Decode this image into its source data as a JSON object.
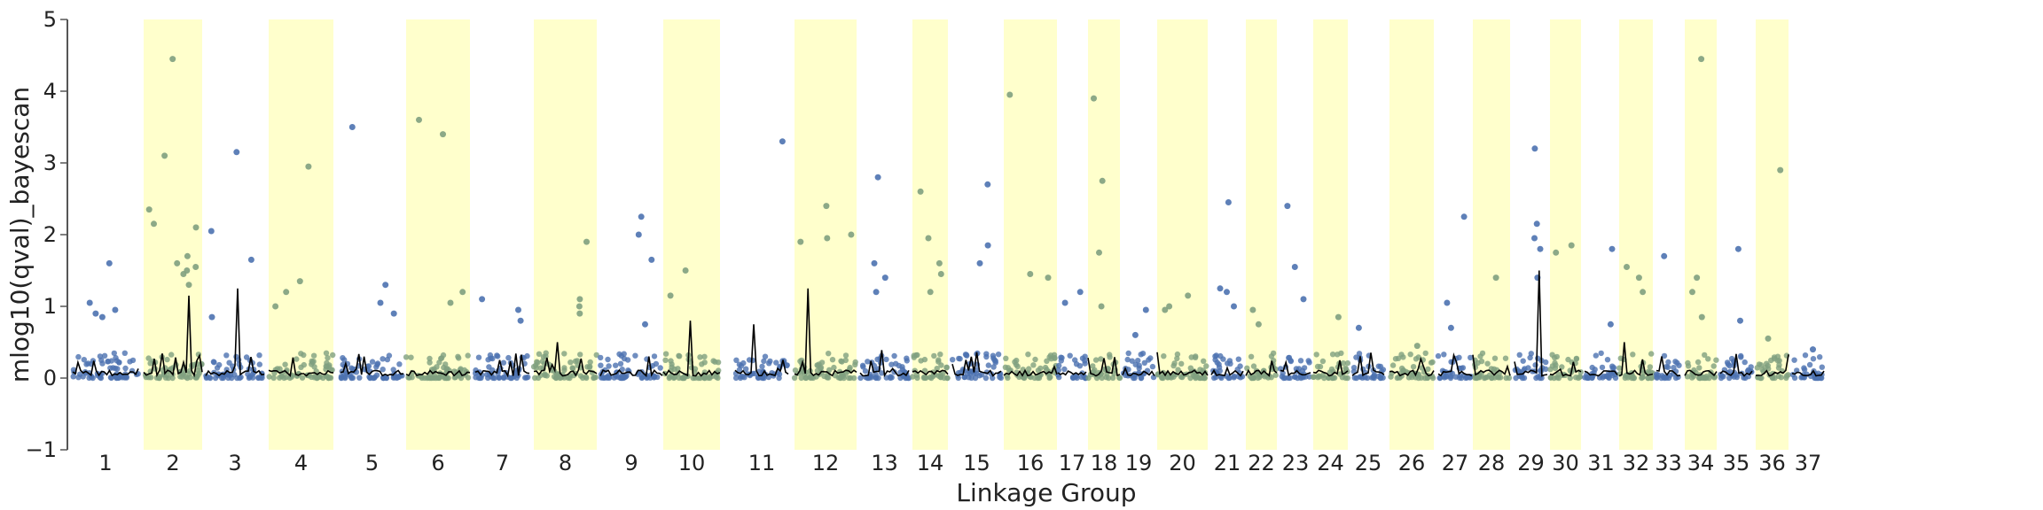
{
  "chart_data": {
    "type": "scatter",
    "title": "",
    "xlabel": "Linkage Group",
    "ylabel": "mlog10(qval)_bayescan",
    "ylim": [
      -1,
      5
    ],
    "yticks": [
      -1,
      0,
      1,
      2,
      3,
      4,
      5
    ],
    "categories": [
      "1",
      "2",
      "3",
      "4",
      "5",
      "6",
      "7",
      "8",
      "9",
      "10",
      "11",
      "12",
      "13",
      "14",
      "15",
      "16",
      "17",
      "18",
      "19",
      "20",
      "21",
      "22",
      "23",
      "24",
      "25",
      "26",
      "27",
      "28",
      "29",
      "30",
      "31",
      "32",
      "33",
      "34",
      "35",
      "36",
      "37"
    ],
    "highlighted_groups": [
      "2",
      "4",
      "6",
      "8",
      "10",
      "12",
      "14",
      "16",
      "18",
      "20",
      "22",
      "24",
      "26",
      "28",
      "30",
      "32",
      "34",
      "36"
    ],
    "band_color": "#ffffcc",
    "point_color": "#4c72b0",
    "point_color_in_band": "#7fa07f",
    "line_color": "#000000",
    "grid": false,
    "legend": "none",
    "outliers": [
      {
        "group": "1",
        "value": 1.6
      },
      {
        "group": "1",
        "value": 1.05
      },
      {
        "group": "1",
        "value": 0.95
      },
      {
        "group": "1",
        "value": 0.85
      },
      {
        "group": "1",
        "value": 0.9
      },
      {
        "group": "2",
        "value": 4.45
      },
      {
        "group": "2",
        "value": 3.1
      },
      {
        "group": "2",
        "value": 2.35
      },
      {
        "group": "2",
        "value": 2.15
      },
      {
        "group": "2",
        "value": 2.1
      },
      {
        "group": "2",
        "value": 1.7
      },
      {
        "group": "2",
        "value": 1.6
      },
      {
        "group": "2",
        "value": 1.55
      },
      {
        "group": "2",
        "value": 1.5
      },
      {
        "group": "2",
        "value": 1.45
      },
      {
        "group": "2",
        "value": 1.3
      },
      {
        "group": "3",
        "value": 3.15
      },
      {
        "group": "3",
        "value": 2.05
      },
      {
        "group": "3",
        "value": 1.65
      },
      {
        "group": "3",
        "value": 0.85
      },
      {
        "group": "4",
        "value": 2.95
      },
      {
        "group": "4",
        "value": 1.35
      },
      {
        "group": "4",
        "value": 1.2
      },
      {
        "group": "4",
        "value": 1.0
      },
      {
        "group": "5",
        "value": 3.5
      },
      {
        "group": "5",
        "value": 1.3
      },
      {
        "group": "5",
        "value": 1.05
      },
      {
        "group": "5",
        "value": 0.9
      },
      {
        "group": "6",
        "value": 3.6
      },
      {
        "group": "6",
        "value": 3.4
      },
      {
        "group": "6",
        "value": 1.2
      },
      {
        "group": "6",
        "value": 1.05
      },
      {
        "group": "7",
        "value": 1.1
      },
      {
        "group": "7",
        "value": 0.95
      },
      {
        "group": "7",
        "value": 0.8
      },
      {
        "group": "8",
        "value": 1.9
      },
      {
        "group": "8",
        "value": 1.1
      },
      {
        "group": "8",
        "value": 1.0
      },
      {
        "group": "8",
        "value": 0.9
      },
      {
        "group": "9",
        "value": 2.25
      },
      {
        "group": "9",
        "value": 2.0
      },
      {
        "group": "9",
        "value": 1.65
      },
      {
        "group": "9",
        "value": 0.75
      },
      {
        "group": "10",
        "value": 1.5
      },
      {
        "group": "10",
        "value": 1.15
      },
      {
        "group": "11",
        "value": 3.3
      },
      {
        "group": "12",
        "value": 2.4
      },
      {
        "group": "12",
        "value": 2.0
      },
      {
        "group": "12",
        "value": 1.95
      },
      {
        "group": "12",
        "value": 1.9
      },
      {
        "group": "13",
        "value": 2.8
      },
      {
        "group": "13",
        "value": 1.6
      },
      {
        "group": "13",
        "value": 1.4
      },
      {
        "group": "13",
        "value": 1.2
      },
      {
        "group": "14",
        "value": 2.6
      },
      {
        "group": "14",
        "value": 1.95
      },
      {
        "group": "14",
        "value": 1.6
      },
      {
        "group": "14",
        "value": 1.45
      },
      {
        "group": "14",
        "value": 1.2
      },
      {
        "group": "15",
        "value": 2.7
      },
      {
        "group": "15",
        "value": 1.85
      },
      {
        "group": "15",
        "value": 1.6
      },
      {
        "group": "16",
        "value": 3.95
      },
      {
        "group": "16",
        "value": 1.45
      },
      {
        "group": "16",
        "value": 1.4
      },
      {
        "group": "17",
        "value": 1.2
      },
      {
        "group": "17",
        "value": 1.05
      },
      {
        "group": "18",
        "value": 3.9
      },
      {
        "group": "18",
        "value": 2.75
      },
      {
        "group": "18",
        "value": 1.75
      },
      {
        "group": "18",
        "value": 1.0
      },
      {
        "group": "19",
        "value": 0.95
      },
      {
        "group": "19",
        "value": 0.6
      },
      {
        "group": "20",
        "value": 1.15
      },
      {
        "group": "20",
        "value": 1.0
      },
      {
        "group": "20",
        "value": 0.95
      },
      {
        "group": "21",
        "value": 2.45
      },
      {
        "group": "21",
        "value": 1.25
      },
      {
        "group": "21",
        "value": 1.2
      },
      {
        "group": "21",
        "value": 1.0
      },
      {
        "group": "22",
        "value": 0.95
      },
      {
        "group": "22",
        "value": 0.75
      },
      {
        "group": "23",
        "value": 2.4
      },
      {
        "group": "23",
        "value": 1.55
      },
      {
        "group": "23",
        "value": 1.1
      },
      {
        "group": "24",
        "value": 0.85
      },
      {
        "group": "25",
        "value": 0.7
      },
      {
        "group": "26",
        "value": 0.45
      },
      {
        "group": "27",
        "value": 2.25
      },
      {
        "group": "27",
        "value": 1.05
      },
      {
        "group": "27",
        "value": 0.7
      },
      {
        "group": "28",
        "value": 1.4
      },
      {
        "group": "29",
        "value": 3.2
      },
      {
        "group": "29",
        "value": 2.15
      },
      {
        "group": "29",
        "value": 1.95
      },
      {
        "group": "29",
        "value": 1.8
      },
      {
        "group": "29",
        "value": 1.4
      },
      {
        "group": "30",
        "value": 1.85
      },
      {
        "group": "30",
        "value": 1.75
      },
      {
        "group": "31",
        "value": 1.8
      },
      {
        "group": "31",
        "value": 0.75
      },
      {
        "group": "32",
        "value": 1.55
      },
      {
        "group": "32",
        "value": 1.4
      },
      {
        "group": "32",
        "value": 1.2
      },
      {
        "group": "33",
        "value": 1.7
      },
      {
        "group": "34",
        "value": 4.45
      },
      {
        "group": "34",
        "value": 1.4
      },
      {
        "group": "34",
        "value": 1.2
      },
      {
        "group": "34",
        "value": 0.85
      },
      {
        "group": "35",
        "value": 1.8
      },
      {
        "group": "35",
        "value": 0.8
      },
      {
        "group": "36",
        "value": 2.9
      },
      {
        "group": "36",
        "value": 0.55
      },
      {
        "group": "37",
        "value": 0.4
      }
    ],
    "line_peaks": [
      {
        "group": "2",
        "value": 1.15
      },
      {
        "group": "3",
        "value": 1.25
      },
      {
        "group": "8",
        "value": 0.5
      },
      {
        "group": "10",
        "value": 0.8
      },
      {
        "group": "11",
        "value": 0.75
      },
      {
        "group": "12",
        "value": 1.25
      },
      {
        "group": "29",
        "value": 1.5
      },
      {
        "group": "32",
        "value": 0.5
      }
    ],
    "baseline_max": 0.35
  }
}
